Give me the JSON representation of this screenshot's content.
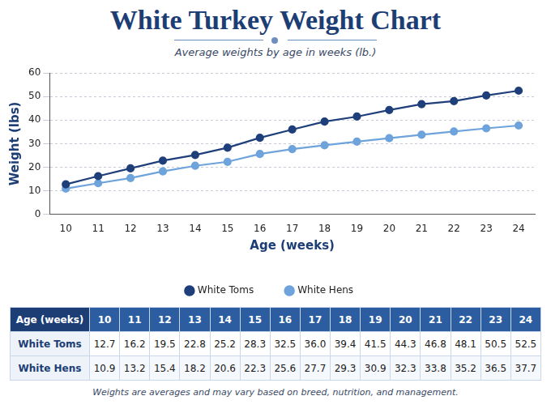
{
  "chart_data": {
    "type": "line",
    "title": "White Turkey Weight Chart",
    "subtitle": "Average weights by age in weeks (lb.)",
    "x_label": "Age (weeks)",
    "y_label": "Weight (lbs)",
    "categories": [
      "10",
      "11",
      "12",
      "13",
      "14",
      "15",
      "16",
      "17",
      "18",
      "19",
      "20",
      "21",
      "22",
      "23",
      "24"
    ],
    "series": [
      {
        "name": "White Toms",
        "color": "#1f3f7a",
        "marker": "circle",
        "line_style": "solid",
        "values": [
          12.7,
          16.2,
          19.5,
          22.8,
          25.2,
          28.3,
          32.5,
          36.0,
          39.4,
          41.5,
          44.3,
          46.8,
          48.1,
          50.5,
          52.5
        ]
      },
      {
        "name": "White Hens",
        "color": "#6ea3dc",
        "marker": "circle",
        "line_style": "solid",
        "values": [
          10.9,
          13.2,
          15.4,
          18.2,
          20.6,
          22.3,
          25.6,
          27.7,
          29.3,
          30.9,
          32.3,
          33.8,
          35.2,
          36.5,
          37.7
        ]
      }
    ],
    "ylim": [
      0,
      60
    ],
    "yticks": [
      0,
      10,
      20,
      30,
      40,
      50,
      60
    ],
    "grid": true,
    "legend": "bottom"
  },
  "table": {
    "header": [
      "Age (weeks)",
      "10",
      "11",
      "12",
      "13",
      "14",
      "15",
      "16",
      "17",
      "18",
      "19",
      "20",
      "21",
      "22",
      "23",
      "24"
    ],
    "rows": [
      [
        "White Toms",
        "12.7",
        "16.2",
        "19.5",
        "22.8",
        "25.2",
        "28.3",
        "32.5",
        "36.0",
        "39.4",
        "41.5",
        "44.3",
        "46.8",
        "48.1",
        "50.5",
        "52.5"
      ],
      [
        "White Hens",
        "10.9",
        "13.2",
        "15.4",
        "18.2",
        "20.6",
        "22.3",
        "25.6",
        "27.7",
        "29.3",
        "30.9",
        "32.3",
        "33.8",
        "35.2",
        "36.5",
        "37.7"
      ]
    ]
  },
  "footnote": "Weights are averages and may vary based on breed, nutrition, and management."
}
